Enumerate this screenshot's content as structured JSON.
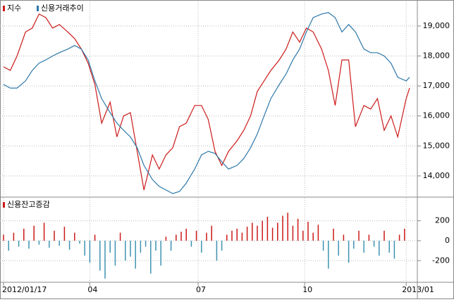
{
  "chart_data": [
    {
      "type": "line",
      "x": [
        0,
        4,
        8,
        13,
        17,
        21,
        25,
        29,
        33,
        38,
        42,
        46,
        50,
        54,
        58,
        63,
        67,
        71,
        75,
        79,
        83,
        88,
        92,
        96,
        100,
        104,
        108,
        113,
        117,
        121,
        125,
        129,
        133,
        138,
        142,
        146,
        150,
        154,
        158,
        163,
        167,
        171,
        175,
        179,
        183,
        188,
        192,
        196,
        200,
        204,
        208,
        213,
        217,
        221,
        225,
        229,
        233,
        238,
        240
      ],
      "series": [
        {
          "name": "지수",
          "color": "#cc1a1a",
          "values": [
            17640,
            17520,
            18000,
            18800,
            18930,
            19400,
            19280,
            18930,
            19050,
            18800,
            18580,
            18230,
            17760,
            17050,
            15760,
            16460,
            15300,
            16000,
            16110,
            14820,
            13530,
            14700,
            14230,
            14700,
            14940,
            15640,
            15760,
            16350,
            16350,
            15880,
            14820,
            14350,
            14820,
            15170,
            15520,
            16000,
            16820,
            17170,
            17520,
            17870,
            18230,
            18800,
            18460,
            18930,
            18800,
            18230,
            17520,
            16350,
            17870,
            17870,
            15640,
            16350,
            16230,
            16580,
            15520,
            16000,
            15300,
            16580,
            16930
          ]
        },
        {
          "name": "신용거래추이",
          "color": "#2e78a8",
          "values": [
            17050,
            16930,
            16930,
            17170,
            17520,
            17760,
            17870,
            18000,
            18110,
            18230,
            18350,
            18230,
            17870,
            17170,
            16580,
            16110,
            15760,
            15520,
            15300,
            14940,
            14350,
            13880,
            13650,
            13530,
            13410,
            13480,
            13760,
            14230,
            14700,
            14820,
            14750,
            14470,
            14230,
            14350,
            14580,
            14940,
            15400,
            16000,
            16580,
            17050,
            17400,
            17870,
            18230,
            18800,
            19280,
            19400,
            19450,
            19280,
            18800,
            19050,
            18800,
            18230,
            18110,
            18110,
            18000,
            17760,
            17290,
            17170,
            17290
          ]
        }
      ],
      "xlim": [
        0,
        240
      ],
      "ylim": [
        13340,
        19820
      ],
      "yticks": [
        {
          "value": 14000,
          "label": "14,000"
        },
        {
          "value": 15000,
          "label": "15,000"
        },
        {
          "value": 16000,
          "label": "16,000"
        },
        {
          "value": 17000,
          "label": "17,000"
        },
        {
          "value": 18000,
          "label": "18,000"
        },
        {
          "value": 19000,
          "label": "19,000"
        }
      ],
      "grid": true
    },
    {
      "type": "bar",
      "title": "신용잔고증감",
      "color": "#cc1a1a",
      "negative_color": "#3f93b0",
      "x": [
        0,
        3,
        6,
        9,
        12,
        15,
        18,
        21,
        24,
        27,
        30,
        33,
        36,
        39,
        42,
        45,
        48,
        51,
        54,
        57,
        60,
        63,
        66,
        69,
        72,
        75,
        78,
        81,
        84,
        87,
        90,
        93,
        96,
        99,
        102,
        105,
        108,
        111,
        114,
        117,
        120,
        123,
        126,
        129,
        132,
        135,
        138,
        141,
        144,
        147,
        150,
        153,
        156,
        159,
        162,
        165,
        168,
        171,
        174,
        177,
        180,
        183,
        186,
        189,
        192,
        195,
        198,
        201,
        204,
        207,
        210,
        213,
        216,
        219,
        222,
        225,
        228,
        231,
        234,
        237
      ],
      "values": [
        60,
        -100,
        80,
        -60,
        120,
        -80,
        150,
        -40,
        180,
        -70,
        100,
        -50,
        140,
        -90,
        80,
        -30,
        -150,
        -220,
        60,
        -300,
        -380,
        -120,
        -250,
        80,
        -200,
        -160,
        -280,
        -120,
        -60,
        -330,
        -100,
        -250,
        40,
        -100,
        60,
        90,
        120,
        -60,
        100,
        -120,
        80,
        150,
        -200,
        -100,
        60,
        100,
        120,
        80,
        140,
        180,
        150,
        200,
        240,
        130,
        180,
        250,
        280,
        150,
        220,
        100,
        190,
        80,
        160,
        -100,
        -280,
        120,
        -150,
        60,
        -220,
        -80,
        100,
        -120,
        60,
        -60,
        -150,
        100,
        -120,
        -180,
        60,
        120
      ],
      "xlim": [
        0,
        240
      ],
      "xticks": [
        {
          "value": 0,
          "label": "2012/01/17"
        },
        {
          "value": 51,
          "label": "04"
        },
        {
          "value": 115,
          "label": "07"
        },
        {
          "value": 178,
          "label": "10"
        },
        {
          "value": 238,
          "label": "2013/01"
        }
      ],
      "ylim": [
        -410,
        430
      ],
      "yticks": [
        -200,
        0,
        200
      ],
      "grid": true
    }
  ]
}
